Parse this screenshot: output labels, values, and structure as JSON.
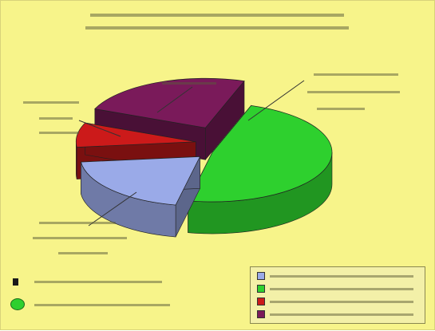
{
  "chart_data": {
    "type": "pie",
    "slices": [
      {
        "value": 12,
        "color": "#2ed02e",
        "exploded": false
      },
      {
        "value": 5,
        "color": "#9aaae8",
        "exploded": true
      },
      {
        "value": 2,
        "color": "#cc1a1a",
        "exploded": true
      },
      {
        "value": 6,
        "color": "#7a1a5a",
        "exploded": true
      }
    ],
    "legend_placement": "bottom-right",
    "style": "3d-exploded"
  },
  "legend": {
    "items": [
      {
        "color": "#9aaae8"
      },
      {
        "color": "#2ed02e"
      },
      {
        "color": "#cc1a1a"
      },
      {
        "color": "#7a1a5a"
      }
    ]
  },
  "side_key": {
    "items": [
      {
        "marker": "small-dark"
      },
      {
        "marker": "large-green",
        "color": "#2ed02e"
      }
    ]
  },
  "colors": {
    "background": "#f7f48a",
    "legend_background": "#f3f0a8"
  }
}
